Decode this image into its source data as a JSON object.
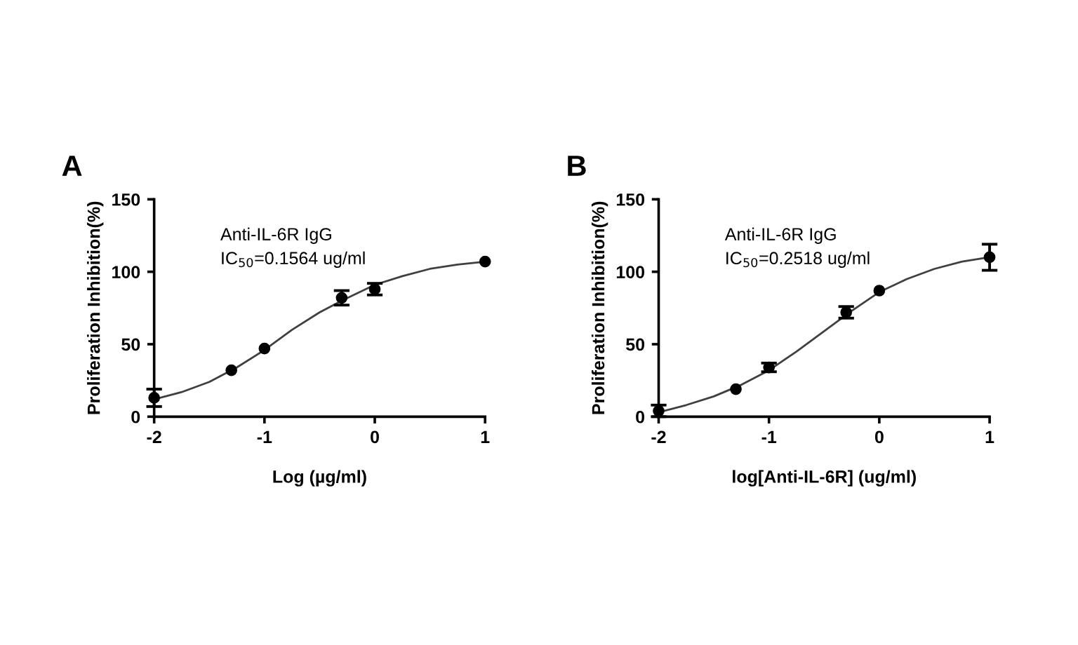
{
  "chart_data": [
    {
      "type": "scatter",
      "annotations": [
        "A",
        "Anti-IL-6R IgG",
        "IC$_{50}$=0.1564 ug/ml"
      ],
      "xlabel": "Log (µg/ml)",
      "ylabel": "Proliferation Inhibition(%)",
      "xlim": [
        -2,
        1
      ],
      "xticks": [
        -2,
        -1,
        0,
        1
      ],
      "ylim": [
        0,
        150
      ],
      "yticks": [
        0,
        50,
        100,
        150
      ],
      "grid": false,
      "legend": false,
      "series": [
        {
          "type": "scatter",
          "marker": "circle",
          "color": "#000000",
          "x": [
            -2,
            -1.3,
            -1,
            -0.3,
            0,
            1
          ],
          "values": [
            13,
            32,
            47,
            82,
            88,
            107
          ],
          "errors": [
            6,
            null,
            null,
            5,
            4,
            null
          ]
        },
        {
          "type": "line",
          "marker": "none",
          "line_style": "solid",
          "color": "#404040",
          "x": [
            -2,
            -1.75,
            -1.5,
            -1.25,
            -1,
            -0.75,
            -0.5,
            -0.3,
            0,
            0.25,
            0.5,
            0.75,
            1
          ],
          "values": [
            12,
            17,
            24,
            34,
            46,
            60,
            72,
            80,
            91,
            97,
            102,
            105,
            107
          ]
        }
      ]
    },
    {
      "type": "scatter",
      "annotations": [
        "B",
        "Anti-IL-6R IgG",
        "IC$_{50}$=0.2518 ug/ml"
      ],
      "xlabel": "log[Anti-IL-6R] (ug/ml)",
      "ylabel": "Proliferation Inhibition(%)",
      "xlim": [
        -2,
        1
      ],
      "xticks": [
        -2,
        -1,
        0,
        1
      ],
      "ylim": [
        0,
        150
      ],
      "yticks": [
        0,
        50,
        100,
        150
      ],
      "grid": false,
      "legend": false,
      "series": [
        {
          "type": "scatter",
          "marker": "circle",
          "color": "#000000",
          "x": [
            -2,
            -1.3,
            -1,
            -0.3,
            0,
            1
          ],
          "values": [
            4,
            19,
            34,
            72,
            87,
            110
          ],
          "errors": [
            4,
            null,
            3,
            4,
            null,
            9
          ]
        },
        {
          "type": "line",
          "marker": "none",
          "line_style": "solid",
          "color": "#404040",
          "x": [
            -2,
            -1.75,
            -1.5,
            -1.25,
            -1,
            -0.75,
            -0.5,
            -0.25,
            0,
            0.25,
            0.5,
            0.75,
            1
          ],
          "values": [
            3,
            8,
            14,
            22,
            32,
            45,
            59,
            73,
            86,
            95,
            102,
            107,
            110
          ]
        }
      ]
    }
  ]
}
